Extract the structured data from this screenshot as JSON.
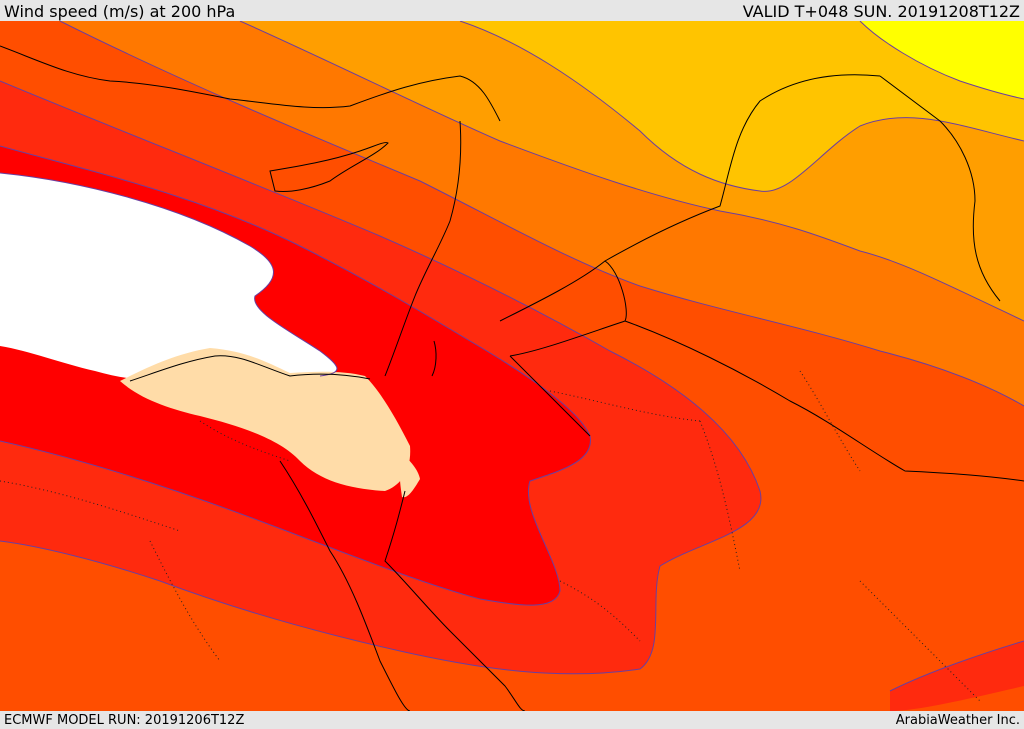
{
  "header": {
    "title": "Wind speed (m/s) at 200 hPa",
    "valid": "VALID T+048 SUN. 20191208T12Z"
  },
  "footer": {
    "model_run": "ECMWF MODEL RUN: 20191206T12Z",
    "credit": "ArabiaWeather Inc."
  },
  "colors": {
    "band_0": "#ffff00",
    "band_1": "#ffc400",
    "band_2": "#ff9e00",
    "band_3": "#ff7800",
    "band_4": "#ff4e00",
    "band_5": "#ff2a0e",
    "band_6": "#ff0000",
    "jet_core": "#ffffff",
    "fill_land": "#ffdca8",
    "contour_line": "#6a3fa0",
    "border_line": "#000000"
  }
}
